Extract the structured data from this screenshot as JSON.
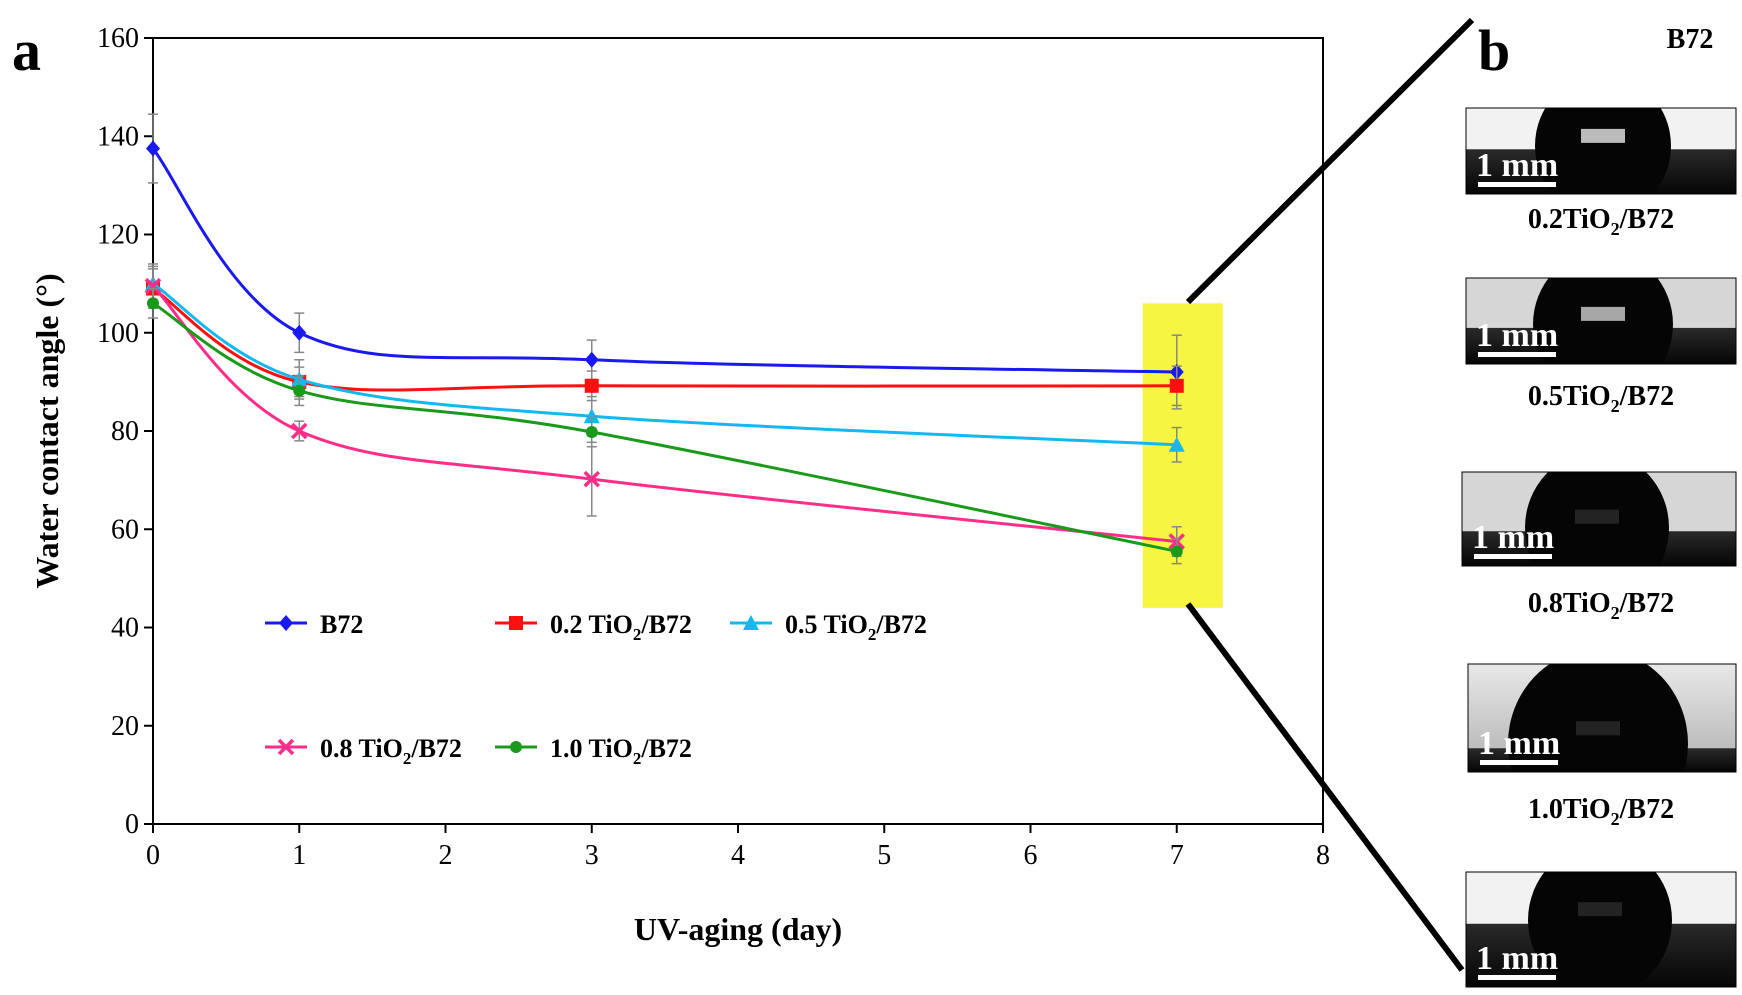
{
  "panel_labels": {
    "a": "a",
    "b": "b"
  },
  "chart_data": {
    "type": "line",
    "xlabel": "UV-aging (day)",
    "ylabel": "Water contact angle (°)",
    "xlim": [
      0,
      8
    ],
    "ylim": [
      0,
      160
    ],
    "xticks": [
      0,
      1,
      2,
      3,
      4,
      5,
      6,
      7,
      8
    ],
    "yticks": [
      0,
      20,
      40,
      60,
      80,
      100,
      120,
      140,
      160
    ],
    "x": [
      0,
      1,
      3,
      7
    ],
    "legend_placement": "lower-left inside plot",
    "highlight": {
      "x_center": 7,
      "y_range": [
        44,
        106
      ],
      "color": "#f5f542"
    },
    "series": [
      {
        "name": "B72",
        "legend_main": "B72",
        "legend_sub": "",
        "legend_tail": "",
        "values": [
          137.5,
          100,
          94.5,
          92
        ],
        "errors": [
          7,
          4,
          4,
          7.5
        ],
        "color": "#1a1af0",
        "marker": "diamond"
      },
      {
        "name": "0.2 TiO2/B72",
        "legend_main": "0.2 TiO",
        "legend_sub": "2",
        "legend_tail": "/B72",
        "values": [
          109,
          90,
          89.2,
          89.2
        ],
        "errors": [
          4,
          3,
          3,
          4
        ],
        "color": "#ff1010",
        "marker": "square"
      },
      {
        "name": "0.5 TiO2/B72",
        "legend_main": "0.5 TiO",
        "legend_sub": "2",
        "legend_tail": "/B72",
        "values": [
          110,
          90.5,
          83,
          77.2
        ],
        "errors": [
          4,
          4,
          4,
          3.5
        ],
        "color": "#14b8f0",
        "marker": "triangle"
      },
      {
        "name": "0.8 TiO2/B72",
        "legend_main": "0.8 TiO",
        "legend_sub": "2",
        "legend_tail": "/B72",
        "values": [
          109.5,
          80,
          70.2,
          57.5
        ],
        "errors": [
          4,
          2,
          7.5,
          3
        ],
        "color": "#ff2d8a",
        "marker": "x"
      },
      {
        "name": "1.0 TiO2/B72",
        "legend_main": "1.0 TiO",
        "legend_sub": "2",
        "legend_tail": "/B72",
        "values": [
          106,
          88.2,
          79.8,
          55.5
        ],
        "errors": [
          3,
          3,
          3,
          2.5
        ],
        "color": "#1a9a1a",
        "marker": "circle"
      }
    ]
  },
  "droplet_images": [
    {
      "label_main": "B72",
      "label_sub": "",
      "label_tail": "",
      "scale": "1 mm"
    },
    {
      "label_main": "0.2TiO",
      "label_sub": "2",
      "label_tail": "/B72",
      "scale": "1 mm"
    },
    {
      "label_main": "0.5TiO",
      "label_sub": "2",
      "label_tail": "/B72",
      "scale": "1 mm"
    },
    {
      "label_main": "0.8TiO",
      "label_sub": "2",
      "label_tail": "/B72",
      "scale": "1 mm"
    },
    {
      "label_main": "1.0TiO",
      "label_sub": "2",
      "label_tail": "/B72",
      "scale": "1 mm"
    }
  ]
}
